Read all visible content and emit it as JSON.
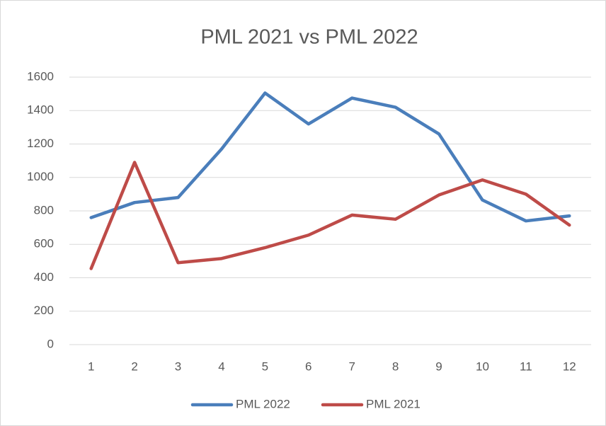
{
  "chart_data": {
    "type": "line",
    "title": "PML 2021 vs PML 2022",
    "categories": [
      "1",
      "2",
      "3",
      "4",
      "5",
      "6",
      "7",
      "8",
      "9",
      "10",
      "11",
      "12"
    ],
    "series": [
      {
        "name": "PML 2022",
        "color": "#4a7ebb",
        "values": [
          760,
          850,
          880,
          1170,
          1505,
          1320,
          1475,
          1420,
          1260,
          865,
          740,
          770
        ]
      },
      {
        "name": "PML 2021",
        "color": "#be4b48",
        "values": [
          455,
          1090,
          490,
          515,
          580,
          655,
          775,
          750,
          895,
          985,
          900,
          715
        ]
      }
    ],
    "ylim": [
      0,
      1600
    ],
    "yticks": [
      0,
      200,
      400,
      600,
      800,
      1000,
      1200,
      1400,
      1600
    ],
    "grid": true,
    "legend": "bottom"
  }
}
